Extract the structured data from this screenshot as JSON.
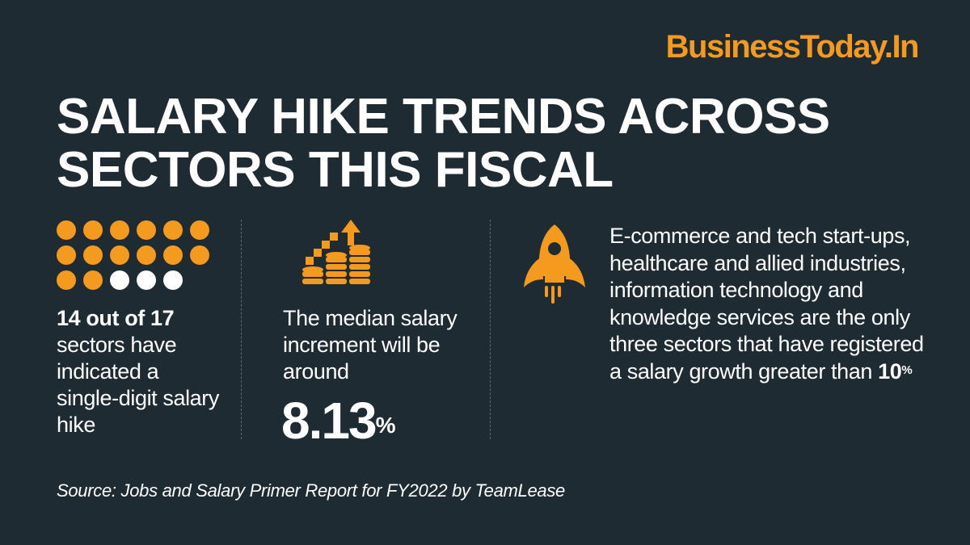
{
  "brand": {
    "name": "BusinessToday.In"
  },
  "headline": {
    "line1": "SALARY HIKE TRENDS ACROSS",
    "line2": "SECTORS THIS FISCAL"
  },
  "colors": {
    "background": "#1f2b32",
    "accent": "#f39a1f",
    "text": "#ffffff"
  },
  "stat1": {
    "icon": "dot-matrix-icon",
    "sectors_total": 17,
    "sectors_single_digit": 14,
    "bold": "14 out of 17",
    "text": "sectors have indicated a single-digit salary hike"
  },
  "stat2": {
    "icon": "rising-coins-icon",
    "text": "The median salary increment will be around",
    "value": "8.13",
    "unit": "%"
  },
  "stat3": {
    "icon": "rocket-icon",
    "text": "E-commerce and tech start-ups, healthcare and allied industries, information technology and knowledge services are the only three sectors that have registered a salary growth greater than",
    "value": "10",
    "unit": "%"
  },
  "source": "Source: Jobs and Salary Primer Report for FY2022 by TeamLease"
}
